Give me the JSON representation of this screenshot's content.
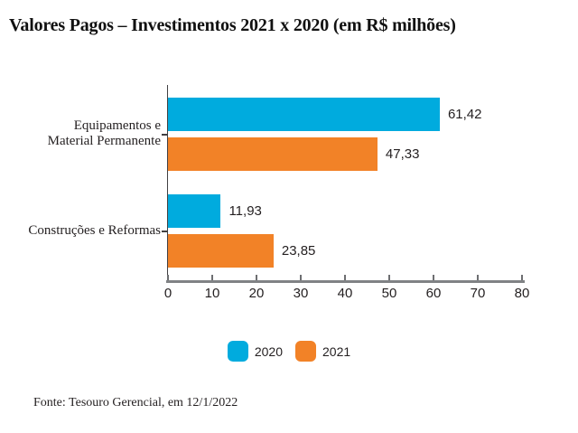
{
  "title": "Valores Pagos – Investimentos 2021 x 2020 (em R$ milhões)",
  "footer": {
    "source": "Fonte: Tesouro Gerencial, em 12/1/2022"
  },
  "colors": {
    "series_2020": "#00ABDE",
    "series_2021": "#F28227",
    "x_axis_line": "#808285",
    "y_axis_line": "#414042",
    "text": "#231F20"
  },
  "chart_data": {
    "type": "bar",
    "orientation": "horizontal",
    "title": "Valores Pagos – Investimentos 2021 x 2020 (em R$ milhões)",
    "categories": [
      "Equipamentos e\nMaterial Permanente",
      "Construções e Reformas"
    ],
    "series": [
      {
        "name": "2020",
        "color": "#00ABDE",
        "values": [
          61.42,
          11.93
        ],
        "value_labels": [
          "61,42",
          "11,93"
        ]
      },
      {
        "name": "2021",
        "color": "#F28227",
        "values": [
          47.33,
          23.85
        ],
        "value_labels": [
          "47,33",
          "23,85"
        ]
      }
    ],
    "xlabel": "",
    "ylabel": "",
    "xlim": [
      0,
      80
    ],
    "x_ticks": [
      0,
      10,
      20,
      30,
      40,
      50,
      60,
      70,
      80
    ],
    "grid": false,
    "legend_position": "bottom",
    "source": "Fonte: Tesouro Gerencial, em 12/1/2022"
  }
}
